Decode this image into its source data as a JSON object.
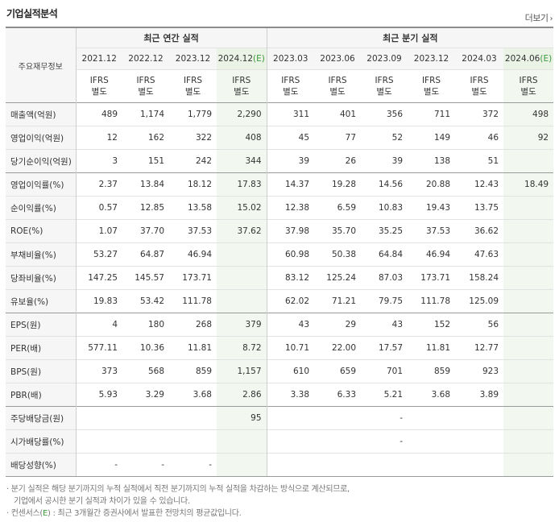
{
  "header": {
    "title": "기업실적분석",
    "more_label": "더보기",
    "more_arrow": "›"
  },
  "table": {
    "row_header_label": "주요재무정보",
    "group_annual": "최근 연간 실적",
    "group_quarter": "최근 분기 실적",
    "annual_periods": [
      "2021.12",
      "2022.12",
      "2023.12",
      "2024.12"
    ],
    "annual_estimate_flag": "(E)",
    "quarter_periods": [
      "2023.03",
      "2023.06",
      "2023.09",
      "2023.12",
      "2024.03",
      "2024.06"
    ],
    "quarter_estimate_flag": "(E)",
    "ifrs_line1": "IFRS",
    "ifrs_line2": "별도",
    "rows": [
      {
        "label": "매출액(억원)",
        "annual": [
          "489",
          "1,174",
          "1,779",
          "2,290"
        ],
        "quarter": [
          "311",
          "401",
          "356",
          "711",
          "372",
          "498"
        ]
      },
      {
        "label": "영업이익(억원)",
        "annual": [
          "12",
          "162",
          "322",
          "408"
        ],
        "quarter": [
          "45",
          "77",
          "52",
          "149",
          "46",
          "92"
        ]
      },
      {
        "label": "당기순이익(억원)",
        "annual": [
          "3",
          "151",
          "242",
          "344"
        ],
        "quarter": [
          "39",
          "26",
          "39",
          "138",
          "51",
          ""
        ]
      },
      {
        "label": "영업이익률(%)",
        "annual": [
          "2.37",
          "13.84",
          "18.12",
          "17.83"
        ],
        "quarter": [
          "14.37",
          "19.28",
          "14.56",
          "20.88",
          "12.43",
          "18.49"
        ]
      },
      {
        "label": "순이익률(%)",
        "annual": [
          "0.57",
          "12.85",
          "13.58",
          "15.02"
        ],
        "quarter": [
          "12.38",
          "6.59",
          "10.83",
          "19.43",
          "13.75",
          ""
        ]
      },
      {
        "label": "ROE(%)",
        "annual": [
          "1.07",
          "37.70",
          "37.53",
          "37.62"
        ],
        "quarter": [
          "37.98",
          "35.70",
          "35.25",
          "37.53",
          "36.62",
          ""
        ]
      },
      {
        "label": "부채비율(%)",
        "annual": [
          "53.27",
          "64.87",
          "46.94",
          ""
        ],
        "quarter": [
          "60.98",
          "50.38",
          "64.84",
          "46.94",
          "47.63",
          ""
        ]
      },
      {
        "label": "당좌비율(%)",
        "annual": [
          "147.25",
          "145.57",
          "173.71",
          ""
        ],
        "quarter": [
          "83.12",
          "125.24",
          "87.03",
          "173.71",
          "158.24",
          ""
        ]
      },
      {
        "label": "유보율(%)",
        "annual": [
          "19.83",
          "53.42",
          "111.78",
          ""
        ],
        "quarter": [
          "62.02",
          "71.21",
          "79.75",
          "111.78",
          "125.09",
          ""
        ]
      },
      {
        "label": "EPS(원)",
        "annual": [
          "4",
          "180",
          "268",
          "379"
        ],
        "quarter": [
          "43",
          "29",
          "43",
          "152",
          "56",
          ""
        ]
      },
      {
        "label": "PER(배)",
        "annual": [
          "577.11",
          "10.36",
          "11.81",
          "8.72"
        ],
        "quarter": [
          "10.71",
          "22.00",
          "17.57",
          "11.81",
          "12.77",
          ""
        ]
      },
      {
        "label": "BPS(원)",
        "annual": [
          "373",
          "568",
          "859",
          "1,157"
        ],
        "quarter": [
          "610",
          "659",
          "701",
          "859",
          "923",
          ""
        ]
      },
      {
        "label": "PBR(배)",
        "annual": [
          "5.93",
          "3.29",
          "3.68",
          "2.86"
        ],
        "quarter": [
          "3.38",
          "6.33",
          "5.21",
          "3.68",
          "3.89",
          ""
        ]
      },
      {
        "label": "주당배당금(원)",
        "annual": [
          "",
          "",
          "",
          "95"
        ],
        "quarter": [
          "",
          "",
          "-",
          "",
          "",
          ""
        ]
      },
      {
        "label": "시가배당률(%)",
        "annual": [
          "",
          "",
          "",
          ""
        ],
        "quarter": [
          "",
          "",
          "-",
          "",
          "",
          ""
        ]
      },
      {
        "label": "배당성향(%)",
        "annual": [
          "-",
          "-",
          "-",
          ""
        ],
        "quarter": [
          "",
          "",
          "",
          "",
          "",
          ""
        ]
      }
    ]
  },
  "notes": {
    "line1": "분기 실적은 해당 분기까지의 누적 실적에서 직전 분기까지의 누적 실적을 차감하는 방식으로 계산되므로,",
    "line2": "기업에서 공시한 분기 실적과 차이가 있을 수 있습니다.",
    "line3_prefix": "컨센서스(",
    "line3_e": "E",
    "line3_suffix": ") : 최근 3개월간 증권사에서 발표한 전망치의 평균값입니다.",
    "bullet": "·"
  }
}
